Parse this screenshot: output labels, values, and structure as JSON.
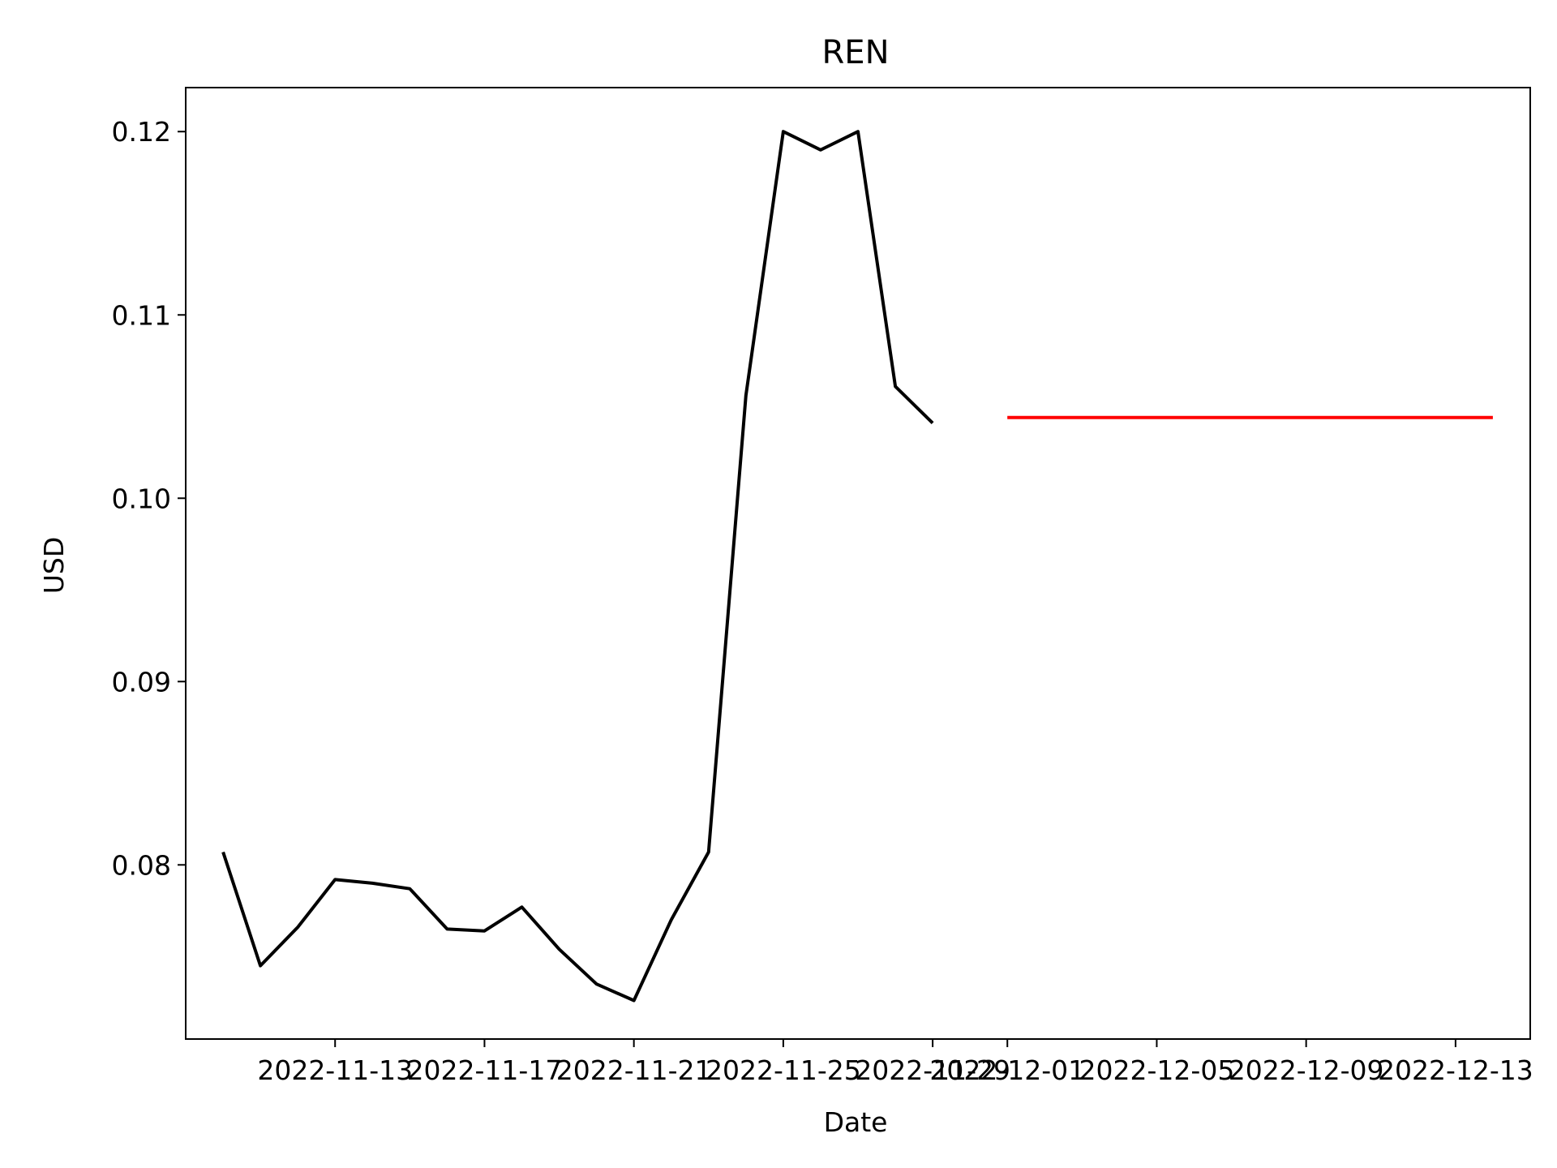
{
  "chart_data": {
    "type": "line",
    "title": "REN",
    "xlabel": "Date",
    "ylabel": "USD",
    "ylim": [
      0.0705,
      0.1224
    ],
    "xlim": [
      "2022-11-09",
      "2022-12-15"
    ],
    "grid": false,
    "x_ticks": [
      "2022-11-13",
      "2022-11-17",
      "2022-11-21",
      "2022-11-25",
      "2022-11-29",
      "2022-12-01",
      "2022-12-05",
      "2022-12-09",
      "2022-12-13"
    ],
    "y_ticks": [
      0.08,
      0.09,
      0.1,
      0.11,
      0.12
    ],
    "y_tick_labels": [
      "0.08",
      "0.09",
      "0.10",
      "0.11",
      "0.12"
    ],
    "series": [
      {
        "color": "#000000",
        "x": [
          "2022-11-10",
          "2022-11-11",
          "2022-11-12",
          "2022-11-13",
          "2022-11-14",
          "2022-11-15",
          "2022-11-16",
          "2022-11-17",
          "2022-11-18",
          "2022-11-19",
          "2022-11-20",
          "2022-11-21",
          "2022-11-22",
          "2022-11-23",
          "2022-11-24",
          "2022-11-25",
          "2022-11-26",
          "2022-11-27",
          "2022-11-28",
          "2022-11-29",
          "2022-11-30"
        ],
        "values": [
          0.0807,
          0.0745,
          0.0766,
          0.0792,
          0.079,
          0.0787,
          0.0765,
          0.0764,
          0.0777,
          0.0754,
          0.0735,
          0.0726,
          0.077,
          0.0807,
          0.1056,
          0.12,
          0.119,
          0.12,
          0.1061,
          0.1041,
          null
        ]
      },
      {
        "color": "#ff0000",
        "x": [
          "2022-12-01",
          "2022-12-14"
        ],
        "values": [
          0.1044,
          0.1044
        ]
      }
    ]
  }
}
